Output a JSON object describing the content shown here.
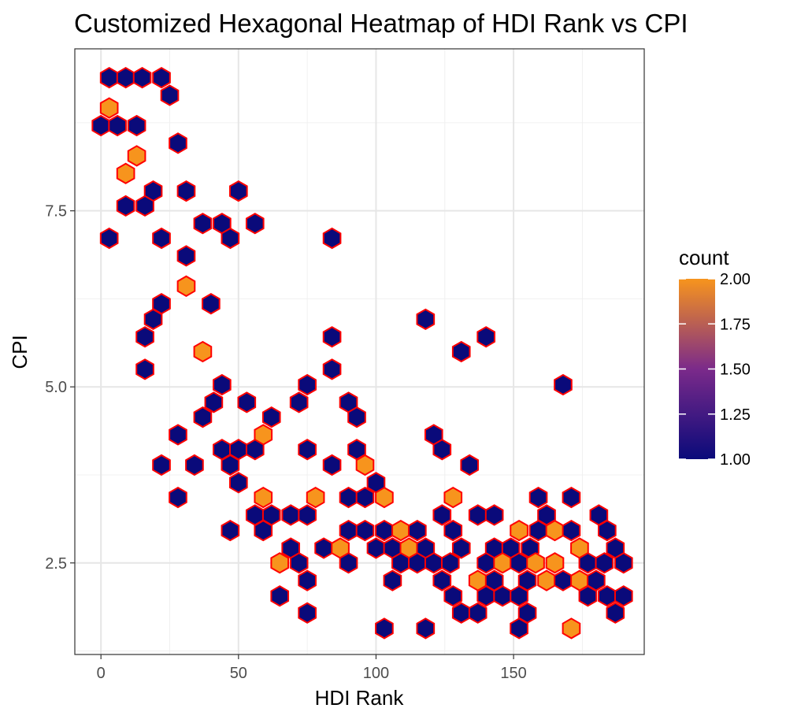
{
  "chart_data": {
    "type": "heatmap",
    "subtype": "hexbin",
    "title": "Customized Hexagonal Heatmap of HDI Rank vs CPI",
    "xlabel": "HDI Rank",
    "ylabel": "CPI",
    "xlim": [
      -9.5,
      197.5
    ],
    "ylim": [
      1.2,
      9.8
    ],
    "x_ticks": [
      0,
      50,
      100,
      150
    ],
    "y_ticks": [
      2.5,
      5.0,
      7.5
    ],
    "x_tick_labels": [
      "0",
      "50",
      "100",
      "150"
    ],
    "y_tick_labels": [
      "2.5",
      "5.0",
      "7.5"
    ],
    "grid": true,
    "legend": {
      "title": "count",
      "position": "right",
      "ticks": [
        1.0,
        1.25,
        1.5,
        1.75,
        2.0
      ],
      "tick_labels": [
        "1.00",
        "1.25",
        "1.50",
        "1.75",
        "2.00"
      ],
      "range": [
        1,
        2
      ]
    },
    "colors": {
      "low": "#0a0a7a",
      "mid": "#7b2a8a",
      "high": "#f7941d",
      "border": "#ff0000"
    },
    "cells": [
      {
        "x": 3,
        "y": 9.39,
        "count": 1
      },
      {
        "x": 9,
        "y": 9.39,
        "count": 1
      },
      {
        "x": 15,
        "y": 9.39,
        "count": 1
      },
      {
        "x": 22,
        "y": 9.39,
        "count": 1
      },
      {
        "x": 25,
        "y": 9.14,
        "count": 1
      },
      {
        "x": 3,
        "y": 8.96,
        "count": 2
      },
      {
        "x": 0,
        "y": 8.71,
        "count": 1
      },
      {
        "x": 6,
        "y": 8.71,
        "count": 1
      },
      {
        "x": 13,
        "y": 8.71,
        "count": 1
      },
      {
        "x": 28,
        "y": 8.46,
        "count": 1
      },
      {
        "x": 13,
        "y": 8.28,
        "count": 2
      },
      {
        "x": 9,
        "y": 8.03,
        "count": 2
      },
      {
        "x": 19,
        "y": 7.78,
        "count": 1
      },
      {
        "x": 31,
        "y": 7.78,
        "count": 1
      },
      {
        "x": 50,
        "y": 7.78,
        "count": 1
      },
      {
        "x": 9,
        "y": 7.57,
        "count": 1
      },
      {
        "x": 16,
        "y": 7.57,
        "count": 1
      },
      {
        "x": 37,
        "y": 7.32,
        "count": 1
      },
      {
        "x": 44,
        "y": 7.32,
        "count": 1
      },
      {
        "x": 56,
        "y": 7.32,
        "count": 1
      },
      {
        "x": 3,
        "y": 7.11,
        "count": 1
      },
      {
        "x": 22,
        "y": 7.11,
        "count": 1
      },
      {
        "x": 47,
        "y": 7.11,
        "count": 1
      },
      {
        "x": 84,
        "y": 7.11,
        "count": 1
      },
      {
        "x": 31,
        "y": 6.86,
        "count": 1
      },
      {
        "x": 31,
        "y": 6.43,
        "count": 2
      },
      {
        "x": 22,
        "y": 6.18,
        "count": 1
      },
      {
        "x": 40,
        "y": 6.18,
        "count": 1
      },
      {
        "x": 19,
        "y": 5.96,
        "count": 1
      },
      {
        "x": 118,
        "y": 5.96,
        "count": 1
      },
      {
        "x": 16,
        "y": 5.71,
        "count": 1
      },
      {
        "x": 84,
        "y": 5.71,
        "count": 1
      },
      {
        "x": 140,
        "y": 5.71,
        "count": 1
      },
      {
        "x": 37,
        "y": 5.5,
        "count": 2
      },
      {
        "x": 131,
        "y": 5.5,
        "count": 1
      },
      {
        "x": 16,
        "y": 5.25,
        "count": 1
      },
      {
        "x": 84,
        "y": 5.25,
        "count": 1
      },
      {
        "x": 44,
        "y": 5.03,
        "count": 1
      },
      {
        "x": 75,
        "y": 5.03,
        "count": 1
      },
      {
        "x": 168,
        "y": 5.03,
        "count": 1
      },
      {
        "x": 41,
        "y": 4.78,
        "count": 1
      },
      {
        "x": 53,
        "y": 4.78,
        "count": 1
      },
      {
        "x": 72,
        "y": 4.78,
        "count": 1
      },
      {
        "x": 90,
        "y": 4.78,
        "count": 1
      },
      {
        "x": 37,
        "y": 4.57,
        "count": 1
      },
      {
        "x": 62,
        "y": 4.57,
        "count": 1
      },
      {
        "x": 93,
        "y": 4.57,
        "count": 1
      },
      {
        "x": 28,
        "y": 4.32,
        "count": 1
      },
      {
        "x": 59,
        "y": 4.32,
        "count": 2
      },
      {
        "x": 121,
        "y": 4.32,
        "count": 1
      },
      {
        "x": 44,
        "y": 4.11,
        "count": 1
      },
      {
        "x": 50,
        "y": 4.11,
        "count": 1
      },
      {
        "x": 56,
        "y": 4.11,
        "count": 1
      },
      {
        "x": 75,
        "y": 4.11,
        "count": 1
      },
      {
        "x": 93,
        "y": 4.11,
        "count": 1
      },
      {
        "x": 124,
        "y": 4.11,
        "count": 1
      },
      {
        "x": 22,
        "y": 3.89,
        "count": 1
      },
      {
        "x": 34,
        "y": 3.89,
        "count": 1
      },
      {
        "x": 47,
        "y": 3.89,
        "count": 1
      },
      {
        "x": 84,
        "y": 3.89,
        "count": 1
      },
      {
        "x": 96,
        "y": 3.89,
        "count": 2
      },
      {
        "x": 134,
        "y": 3.89,
        "count": 1
      },
      {
        "x": 50,
        "y": 3.64,
        "count": 1
      },
      {
        "x": 100,
        "y": 3.64,
        "count": 1
      },
      {
        "x": 28,
        "y": 3.43,
        "count": 1
      },
      {
        "x": 59,
        "y": 3.43,
        "count": 2
      },
      {
        "x": 78,
        "y": 3.43,
        "count": 2
      },
      {
        "x": 90,
        "y": 3.43,
        "count": 1
      },
      {
        "x": 96,
        "y": 3.43,
        "count": 1
      },
      {
        "x": 103,
        "y": 3.43,
        "count": 2
      },
      {
        "x": 128,
        "y": 3.43,
        "count": 2
      },
      {
        "x": 159,
        "y": 3.43,
        "count": 1
      },
      {
        "x": 171,
        "y": 3.43,
        "count": 1
      },
      {
        "x": 56,
        "y": 3.18,
        "count": 1
      },
      {
        "x": 62,
        "y": 3.18,
        "count": 1
      },
      {
        "x": 69,
        "y": 3.18,
        "count": 1
      },
      {
        "x": 75,
        "y": 3.18,
        "count": 1
      },
      {
        "x": 124,
        "y": 3.18,
        "count": 1
      },
      {
        "x": 137,
        "y": 3.18,
        "count": 1
      },
      {
        "x": 143,
        "y": 3.18,
        "count": 1
      },
      {
        "x": 162,
        "y": 3.18,
        "count": 1
      },
      {
        "x": 181,
        "y": 3.18,
        "count": 1
      },
      {
        "x": 47,
        "y": 2.96,
        "count": 1
      },
      {
        "x": 59,
        "y": 2.96,
        "count": 1
      },
      {
        "x": 90,
        "y": 2.96,
        "count": 1
      },
      {
        "x": 96,
        "y": 2.96,
        "count": 1
      },
      {
        "x": 103,
        "y": 2.96,
        "count": 1
      },
      {
        "x": 109,
        "y": 2.96,
        "count": 2
      },
      {
        "x": 115,
        "y": 2.96,
        "count": 1
      },
      {
        "x": 128,
        "y": 2.96,
        "count": 1
      },
      {
        "x": 152,
        "y": 2.96,
        "count": 2
      },
      {
        "x": 159,
        "y": 2.96,
        "count": 1
      },
      {
        "x": 165,
        "y": 2.96,
        "count": 2
      },
      {
        "x": 171,
        "y": 2.96,
        "count": 1
      },
      {
        "x": 184,
        "y": 2.96,
        "count": 1
      },
      {
        "x": 69,
        "y": 2.71,
        "count": 1
      },
      {
        "x": 81,
        "y": 2.71,
        "count": 1
      },
      {
        "x": 87,
        "y": 2.71,
        "count": 2
      },
      {
        "x": 100,
        "y": 2.71,
        "count": 1
      },
      {
        "x": 106,
        "y": 2.71,
        "count": 1
      },
      {
        "x": 112,
        "y": 2.71,
        "count": 2
      },
      {
        "x": 118,
        "y": 2.71,
        "count": 1
      },
      {
        "x": 131,
        "y": 2.71,
        "count": 1
      },
      {
        "x": 143,
        "y": 2.71,
        "count": 1
      },
      {
        "x": 149,
        "y": 2.71,
        "count": 1
      },
      {
        "x": 156,
        "y": 2.71,
        "count": 1
      },
      {
        "x": 174,
        "y": 2.71,
        "count": 2
      },
      {
        "x": 187,
        "y": 2.71,
        "count": 1
      },
      {
        "x": 65,
        "y": 2.5,
        "count": 2
      },
      {
        "x": 72,
        "y": 2.5,
        "count": 1
      },
      {
        "x": 90,
        "y": 2.5,
        "count": 1
      },
      {
        "x": 109,
        "y": 2.5,
        "count": 1
      },
      {
        "x": 115,
        "y": 2.5,
        "count": 1
      },
      {
        "x": 121,
        "y": 2.5,
        "count": 1
      },
      {
        "x": 127,
        "y": 2.5,
        "count": 1
      },
      {
        "x": 140,
        "y": 2.5,
        "count": 1
      },
      {
        "x": 146,
        "y": 2.5,
        "count": 2
      },
      {
        "x": 152,
        "y": 2.5,
        "count": 1
      },
      {
        "x": 158,
        "y": 2.5,
        "count": 2
      },
      {
        "x": 165,
        "y": 2.5,
        "count": 2
      },
      {
        "x": 177,
        "y": 2.5,
        "count": 1
      },
      {
        "x": 183,
        "y": 2.5,
        "count": 1
      },
      {
        "x": 190,
        "y": 2.5,
        "count": 1
      },
      {
        "x": 75,
        "y": 2.25,
        "count": 1
      },
      {
        "x": 106,
        "y": 2.25,
        "count": 1
      },
      {
        "x": 124,
        "y": 2.25,
        "count": 1
      },
      {
        "x": 137,
        "y": 2.25,
        "count": 2
      },
      {
        "x": 143,
        "y": 2.25,
        "count": 1
      },
      {
        "x": 155,
        "y": 2.25,
        "count": 1
      },
      {
        "x": 162,
        "y": 2.25,
        "count": 2
      },
      {
        "x": 168,
        "y": 2.25,
        "count": 1
      },
      {
        "x": 174,
        "y": 2.25,
        "count": 2
      },
      {
        "x": 180,
        "y": 2.25,
        "count": 1
      },
      {
        "x": 65,
        "y": 2.03,
        "count": 1
      },
      {
        "x": 128,
        "y": 2.03,
        "count": 1
      },
      {
        "x": 140,
        "y": 2.03,
        "count": 1
      },
      {
        "x": 146,
        "y": 2.03,
        "count": 1
      },
      {
        "x": 152,
        "y": 2.03,
        "count": 1
      },
      {
        "x": 177,
        "y": 2.03,
        "count": 1
      },
      {
        "x": 184,
        "y": 2.03,
        "count": 1
      },
      {
        "x": 190,
        "y": 2.03,
        "count": 1
      },
      {
        "x": 75,
        "y": 1.79,
        "count": 1
      },
      {
        "x": 131,
        "y": 1.79,
        "count": 1
      },
      {
        "x": 137,
        "y": 1.79,
        "count": 1
      },
      {
        "x": 155,
        "y": 1.79,
        "count": 1
      },
      {
        "x": 187,
        "y": 1.79,
        "count": 1
      },
      {
        "x": 103,
        "y": 1.57,
        "count": 1
      },
      {
        "x": 118,
        "y": 1.57,
        "count": 1
      },
      {
        "x": 152,
        "y": 1.57,
        "count": 1
      },
      {
        "x": 171,
        "y": 1.57,
        "count": 2
      }
    ]
  }
}
